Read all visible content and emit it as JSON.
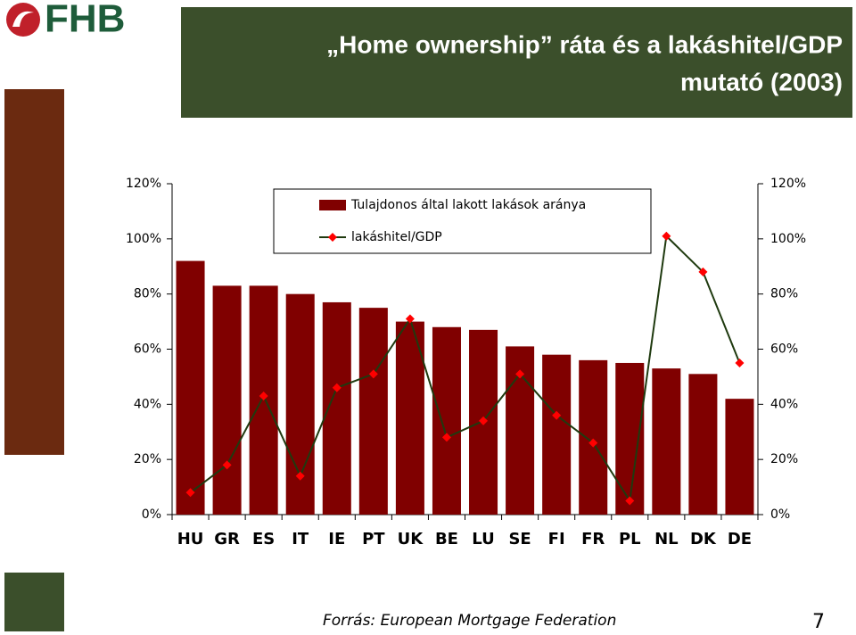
{
  "logo": "FHB",
  "source": "Forrás: European Mortgage Federation",
  "page_number": "7",
  "chart_data": {
    "type": "bar-line",
    "title": [
      "„Home ownership” ráta  és a lakáshitel/GDP",
      "mutató (2003)"
    ],
    "categories": [
      "HU",
      "GR",
      "ES",
      "IT",
      "IE",
      "PT",
      "UK",
      "BE",
      "LU",
      "SE",
      "FI",
      "FR",
      "PL",
      "NL",
      "DK",
      "DE"
    ],
    "series": [
      {
        "name": "Tulajdonos által lakott lakások aránya",
        "type": "bar",
        "color": "#800000",
        "values": [
          92,
          83,
          83,
          80,
          77,
          75,
          70,
          68,
          67,
          61,
          58,
          56,
          55,
          53,
          51,
          42
        ]
      },
      {
        "name": "lakáshitel/GDP",
        "type": "line",
        "axis": "y2",
        "color": "#1f3a0f",
        "marker_color": "#ff0000",
        "values": [
          8,
          18,
          43,
          14,
          46,
          51,
          71,
          28,
          34,
          51,
          36,
          26,
          5,
          101,
          88,
          55
        ]
      }
    ],
    "ylim": [
      0,
      120
    ],
    "yticks": [
      {
        "value": 0,
        "label": "0%"
      },
      {
        "value": 20,
        "label": "20%"
      },
      {
        "value": 40,
        "label": "40%"
      },
      {
        "value": 60,
        "label": "60%"
      },
      {
        "value": 80,
        "label": "80%"
      },
      {
        "value": 100,
        "label": "100%"
      },
      {
        "value": 120,
        "label": "120%"
      }
    ],
    "y2lim": [
      0,
      120
    ],
    "y2ticks": [
      {
        "value": 0,
        "label": "0%"
      },
      {
        "value": 20,
        "label": "20%"
      },
      {
        "value": 40,
        "label": "40%"
      },
      {
        "value": 60,
        "label": "60%"
      },
      {
        "value": 80,
        "label": "80%"
      },
      {
        "value": 100,
        "label": "100%"
      },
      {
        "value": 120,
        "label": "120%"
      }
    ],
    "grid": false,
    "legend": "top"
  }
}
